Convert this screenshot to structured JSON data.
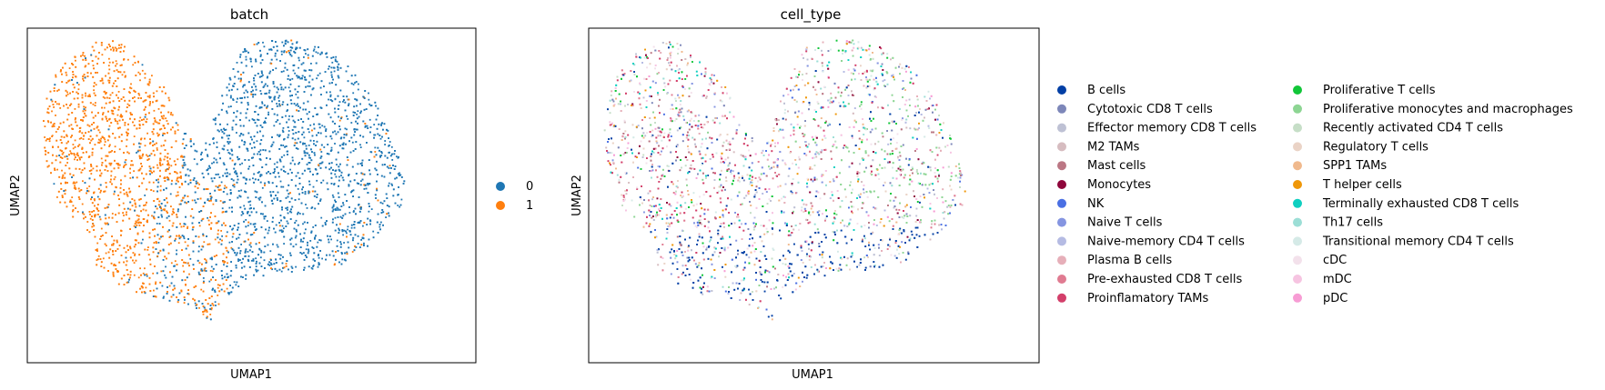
{
  "chart_data": [
    {
      "type": "scatter",
      "title": "batch",
      "xlabel": "UMAP1",
      "ylabel": "UMAP2",
      "grid": false,
      "ticks": "none",
      "legend_placement": "right",
      "categories": [
        "0",
        "1"
      ],
      "colors": [
        "#1f77b4",
        "#ff7f0e"
      ],
      "cluster_assignment": {
        "0": "right lobe, center, lower center",
        "1": "left lobe, lower-left region"
      }
    },
    {
      "type": "scatter",
      "title": "cell_type",
      "xlabel": "UMAP1",
      "ylabel": "UMAP2",
      "grid": false,
      "ticks": "none",
      "legend_placement": "right",
      "legend_columns": 2,
      "categories": [
        "B cells",
        "Cytotoxic CD8 T cells",
        "Effector memory CD8 T cells",
        "M2 TAMs",
        "Mast cells",
        "Monocytes",
        "NK",
        "Naive T cells",
        "Naive-memory CD4 T cells",
        "Plasma B cells",
        "Pre-exhausted CD8 T cells",
        "Proinflamatory TAMs",
        "Proliferative T cells",
        "Proliferative monocytes and macrophages",
        "Recently activated CD4 T cells",
        "Regulatory T cells",
        "SPP1 TAMs",
        "T helper cells",
        "Terminally exhausted CD8 T cells",
        "Th17 cells",
        "Transitional memory CD4 T cells",
        "cDC",
        "mDC",
        "pDC"
      ],
      "colors": [
        "#023fa5",
        "#7d87b9",
        "#bec1d4",
        "#d6bcc0",
        "#bb7784",
        "#8e063b",
        "#4a6fe3",
        "#8595e1",
        "#b5bbe3",
        "#e6afb9",
        "#e07b91",
        "#d33f6a",
        "#11c638",
        "#8dd593",
        "#c6dec7",
        "#ead3c6",
        "#f0b98d",
        "#ef9708",
        "#0fcfc0",
        "#9cded6",
        "#d5eae7",
        "#f3e1eb",
        "#f6c4e1",
        "#f79cd4"
      ]
    }
  ]
}
